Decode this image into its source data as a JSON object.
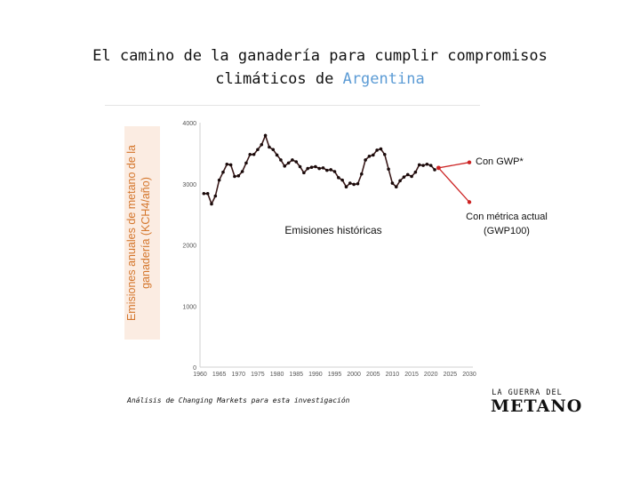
{
  "header": {
    "title_line1": "El camino de la ganadería para cumplir compromisos",
    "title_line2_prefix": "climáticos de ",
    "title_line2_accent": "Argentina"
  },
  "source_note": "Análisis de Changing Markets para esta investigación",
  "logo": {
    "line1": "LA GUERRA DEL",
    "line2": "METANO"
  },
  "colors": {
    "history": "#3a1a1a",
    "projection": "#cc2222",
    "axis_label": "#d4762c",
    "title_accent": "#5b9bd5"
  },
  "chart_data": {
    "type": "line",
    "title": "",
    "ylabel": "Emisiones anuales de metano de la ganadería (KCH4/año)",
    "xlabel": "",
    "xlim": [
      1960,
      2030
    ],
    "ylim": [
      0,
      4000
    ],
    "x_ticks": [
      1960,
      1965,
      1970,
      1975,
      1980,
      1985,
      1990,
      1995,
      2000,
      2005,
      2010,
      2015,
      2020,
      2025,
      2030
    ],
    "y_ticks": [
      0,
      1000,
      2000,
      3000,
      4000
    ],
    "grid": false,
    "series": [
      {
        "name": "Emisiones históricas",
        "x": [
          1961,
          1962,
          1963,
          1964,
          1965,
          1966,
          1967,
          1968,
          1969,
          1970,
          1971,
          1972,
          1973,
          1974,
          1975,
          1976,
          1977,
          1978,
          1979,
          1980,
          1981,
          1982,
          1983,
          1984,
          1985,
          1986,
          1987,
          1988,
          1989,
          1990,
          1991,
          1992,
          1993,
          1994,
          1995,
          1996,
          1997,
          1998,
          1999,
          2000,
          2001,
          2002,
          2003,
          2004,
          2005,
          2006,
          2007,
          2008,
          2009,
          2010,
          2011,
          2012,
          2013,
          2014,
          2015,
          2016,
          2017,
          2018,
          2019,
          2020,
          2021
        ],
        "y": [
          2840,
          2840,
          2670,
          2800,
          3060,
          3190,
          3320,
          3310,
          3120,
          3130,
          3200,
          3340,
          3480,
          3480,
          3560,
          3640,
          3790,
          3600,
          3560,
          3470,
          3390,
          3290,
          3340,
          3390,
          3360,
          3280,
          3180,
          3250,
          3270,
          3280,
          3250,
          3260,
          3220,
          3230,
          3200,
          3100,
          3060,
          2950,
          3010,
          2990,
          3000,
          3160,
          3390,
          3450,
          3470,
          3550,
          3570,
          3480,
          3240,
          3010,
          2950,
          3050,
          3110,
          3150,
          3120,
          3190,
          3310,
          3300,
          3320,
          3300,
          3230
        ]
      },
      {
        "name": "Con GWP*",
        "x": [
          2022,
          2030
        ],
        "y": [
          3260,
          3350
        ]
      },
      {
        "name": "Con métrica actual (GWP100)",
        "x": [
          2022,
          2030
        ],
        "y": [
          3260,
          2700
        ]
      }
    ],
    "annotations": {
      "history": "Emisiones históricas",
      "gwp_star": "Con GWP*",
      "gwp100_line1": "Con métrica actual",
      "gwp100_line2": "(GWP100)"
    }
  }
}
